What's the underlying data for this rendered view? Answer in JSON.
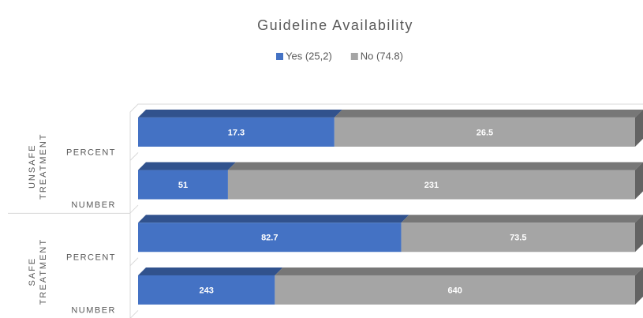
{
  "chart_data": {
    "type": "bar",
    "orientation": "horizontal",
    "stacked": "percent",
    "title": "Guideline Availability",
    "categories": [
      "PERCENT",
      "NUMBER",
      "PERCENT",
      "NUMBER"
    ],
    "groups": [
      {
        "label": "UNSAFE TREATMENT",
        "start": 0,
        "end": 1
      },
      {
        "label": "SAFE TREATMENT",
        "start": 2,
        "end": 3
      }
    ],
    "series": [
      {
        "name": "Yes (25,2)",
        "color": "#4472c4",
        "values": [
          17.3,
          51,
          82.7,
          243
        ]
      },
      {
        "name": "No (74.8)",
        "color": "#a5a5a5",
        "values": [
          26.5,
          231,
          73.5,
          640
        ]
      }
    ],
    "legend": "top"
  }
}
